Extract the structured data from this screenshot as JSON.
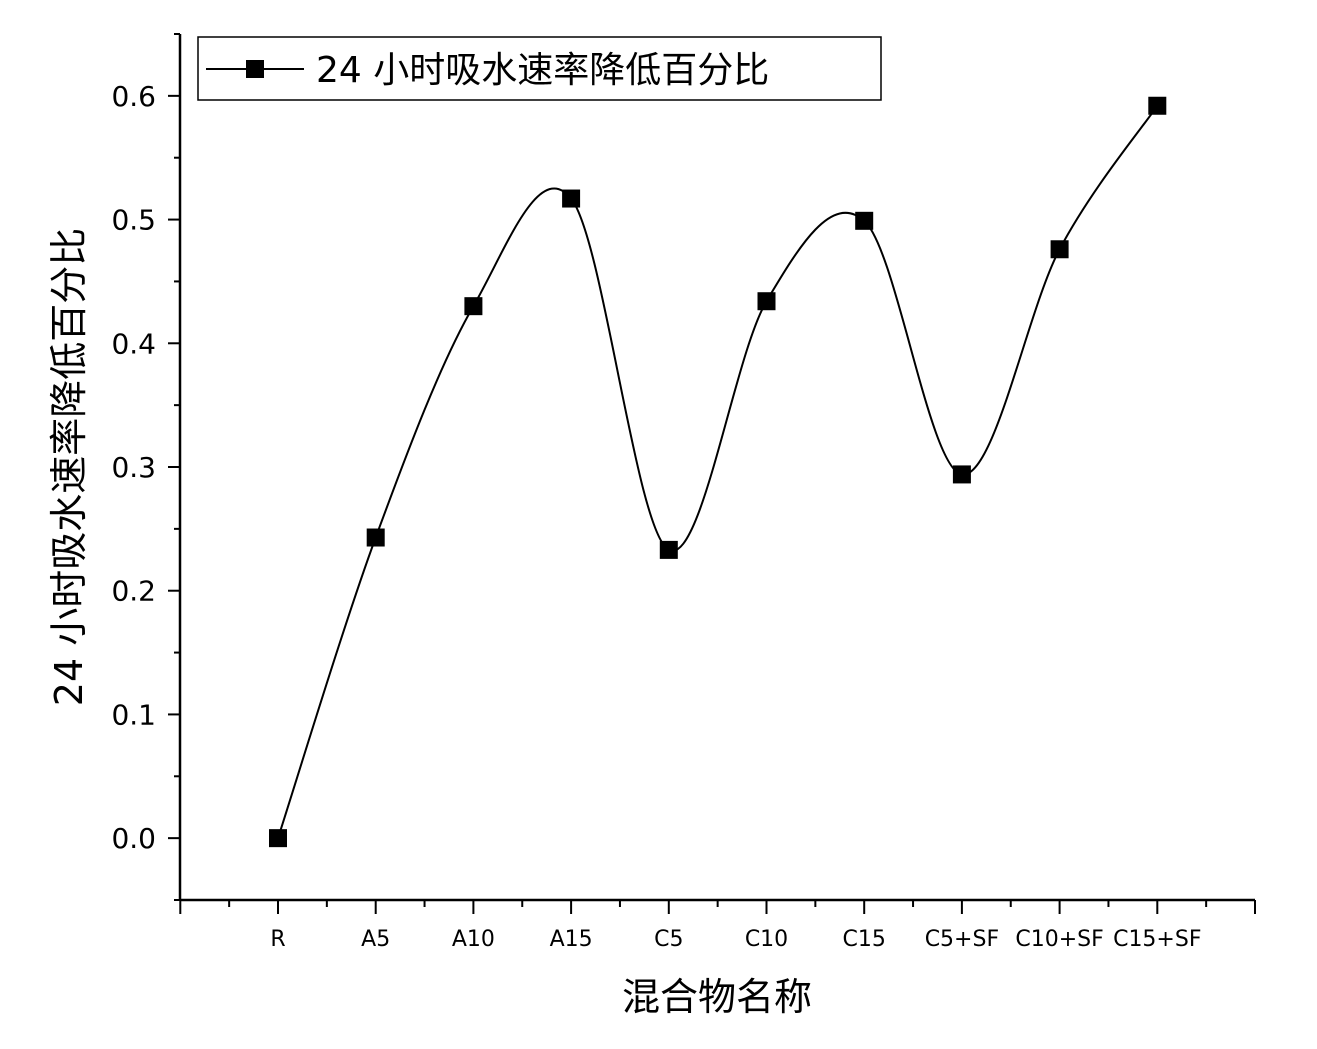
{
  "chart_data": {
    "type": "line",
    "smooth": true,
    "categories": [
      "R",
      "A5",
      "A10",
      "A15",
      "C5",
      "C10",
      "C15",
      "C5+SF",
      "C10+SF",
      "C15+SF"
    ],
    "series": [
      {
        "name": "24 小时吸水速率降低百分比",
        "values": [
          0.0,
          0.243,
          0.43,
          0.517,
          0.233,
          0.434,
          0.499,
          0.294,
          0.476,
          0.592
        ],
        "marker": "square",
        "color": "#000000"
      }
    ],
    "xlabel": "混合物名称",
    "ylabel": "24 小时吸水速率降低百分比",
    "ylim": [
      -0.05,
      0.65
    ],
    "yticks": [
      "0.0",
      "0.1",
      "0.2",
      "0.3",
      "0.4",
      "0.5",
      "0.6"
    ],
    "ytick_values": [
      0.0,
      0.1,
      0.2,
      0.3,
      0.4,
      0.5,
      0.6
    ],
    "grid": false,
    "legend_position": "top-left"
  }
}
